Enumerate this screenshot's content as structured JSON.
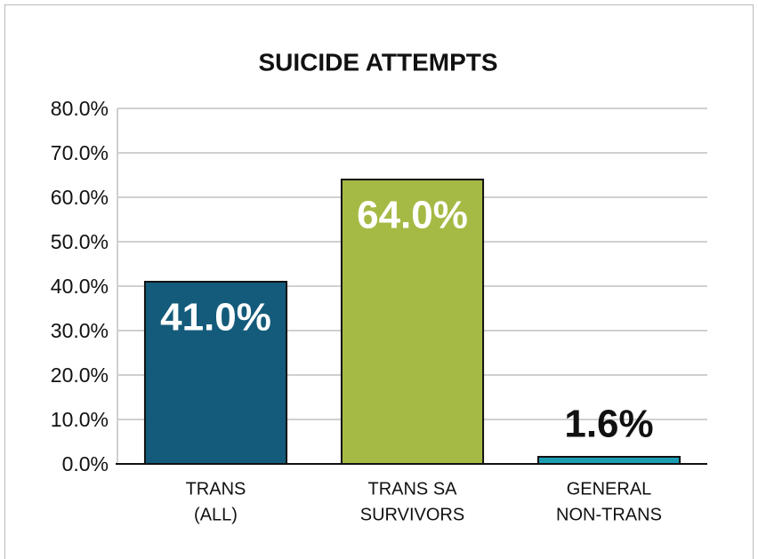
{
  "chart_data": {
    "type": "bar",
    "title": "SUICIDE ATTEMPTS",
    "categories": [
      [
        "TRANS",
        "(ALL)"
      ],
      [
        "TRANS SA",
        "SURVIVORS"
      ],
      [
        "GENERAL",
        "NON-TRANS"
      ]
    ],
    "values": [
      41.0,
      64.0,
      1.6
    ],
    "value_labels": [
      "41.0%",
      "64.0%",
      "1.6%"
    ],
    "colors": [
      "#145b7b",
      "#a5ba45",
      "#1b9db3"
    ],
    "ylim": [
      0,
      80
    ],
    "yticks": [
      {
        "value": 0,
        "label": "0.0%"
      },
      {
        "value": 10,
        "label": "10.0%"
      },
      {
        "value": 20,
        "label": "20.0%"
      },
      {
        "value": 30,
        "label": "30.0%"
      },
      {
        "value": 40,
        "label": "40.0%"
      },
      {
        "value": 50,
        "label": "50.0%"
      },
      {
        "value": 60,
        "label": "60.0%"
      },
      {
        "value": 70,
        "label": "70.0%"
      },
      {
        "value": 80,
        "label": "80.0%"
      }
    ],
    "grid": true
  }
}
